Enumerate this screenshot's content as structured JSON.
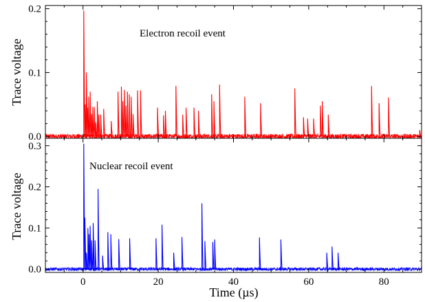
{
  "figure": {
    "xlabel": "Time (µs)",
    "shared_x_ticks": [
      "0",
      "20",
      "40",
      "60",
      "80"
    ]
  },
  "chart_data": [
    {
      "type": "line",
      "title": "",
      "annotation": "Electron recoil event",
      "xlabel": "Time (µs)",
      "ylabel": "Trace voltage",
      "xlim": [
        -10,
        90
      ],
      "ylim": [
        -0.003,
        0.205
      ],
      "x_ticks": [
        0,
        20,
        40,
        60,
        80
      ],
      "y_ticks": [
        0.0,
        0.1,
        0.2
      ],
      "y_tick_labels": [
        "0.0",
        "0.1",
        "0.2"
      ],
      "color": "#ff0000",
      "baseline_noise": 0.004,
      "series": [
        {
          "pulses": [
            [
              0.2,
              0.197
            ],
            [
              0.6,
              0.05
            ],
            [
              0.9,
              0.1
            ],
            [
              1.2,
              0.045
            ],
            [
              1.5,
              0.062
            ],
            [
              1.9,
              0.07
            ],
            [
              2.3,
              0.035
            ],
            [
              2.6,
              0.046
            ],
            [
              3.0,
              0.046
            ],
            [
              3.4,
              0.022
            ],
            [
              3.8,
              0.055
            ],
            [
              4.2,
              0.034
            ],
            [
              4.7,
              0.034
            ],
            [
              5.5,
              0.043
            ],
            [
              7.5,
              0.024
            ],
            [
              9.3,
              0.07
            ],
            [
              10.2,
              0.078
            ],
            [
              10.6,
              0.055
            ],
            [
              11.0,
              0.073
            ],
            [
              11.4,
              0.048
            ],
            [
              11.8,
              0.07
            ],
            [
              12.3,
              0.066
            ],
            [
              12.8,
              0.062
            ],
            [
              13.3,
              0.035
            ],
            [
              14.5,
              0.072
            ],
            [
              15.3,
              0.072
            ],
            [
              19.8,
              0.045
            ],
            [
              21.4,
              0.033
            ],
            [
              21.9,
              0.04
            ],
            [
              24.7,
              0.079
            ],
            [
              26.5,
              0.034
            ],
            [
              27.4,
              0.045
            ],
            [
              29.5,
              0.045
            ],
            [
              30.7,
              0.04
            ],
            [
              34.2,
              0.066
            ],
            [
              34.8,
              0.055
            ],
            [
              36.3,
              0.081
            ],
            [
              43.0,
              0.062
            ],
            [
              47.2,
              0.052
            ],
            [
              56.3,
              0.075
            ],
            [
              58.6,
              0.03
            ],
            [
              59.7,
              0.028
            ],
            [
              61.3,
              0.028
            ],
            [
              63.1,
              0.048
            ],
            [
              63.6,
              0.055
            ],
            [
              65.2,
              0.034
            ],
            [
              76.7,
              0.079
            ],
            [
              78.7,
              0.052
            ],
            [
              81.2,
              0.061
            ],
            [
              89.5,
              0.01
            ]
          ]
        }
      ]
    },
    {
      "type": "line",
      "title": "",
      "annotation": "Nuclear recoil event",
      "xlabel": "Time (µs)",
      "ylabel": "Trace voltage",
      "xlim": [
        -10,
        90
      ],
      "ylim": [
        -0.008,
        0.318
      ],
      "x_ticks": [
        0,
        20,
        40,
        60,
        80
      ],
      "y_ticks": [
        0.0,
        0.1,
        0.2,
        0.3
      ],
      "y_tick_labels": [
        "0.0",
        "0.1",
        "0.2",
        "0.3"
      ],
      "color": "#0000ff",
      "baseline_noise": 0.004,
      "series": [
        {
          "pulses": [
            [
              0.2,
              0.305
            ],
            [
              0.5,
              0.125
            ],
            [
              0.9,
              0.04
            ],
            [
              1.3,
              0.1
            ],
            [
              1.6,
              0.085
            ],
            [
              1.9,
              0.105
            ],
            [
              2.3,
              0.07
            ],
            [
              2.7,
              0.112
            ],
            [
              3.2,
              0.07
            ],
            [
              4.0,
              0.195
            ],
            [
              5.2,
              0.033
            ],
            [
              6.6,
              0.09
            ],
            [
              7.4,
              0.085
            ],
            [
              9.5,
              0.073
            ],
            [
              12.4,
              0.075
            ],
            [
              19.4,
              0.075
            ],
            [
              21.0,
              0.108
            ],
            [
              24.1,
              0.04
            ],
            [
              26.3,
              0.078
            ],
            [
              31.6,
              0.16
            ],
            [
              32.4,
              0.068
            ],
            [
              34.5,
              0.066
            ],
            [
              35.0,
              0.072
            ],
            [
              46.9,
              0.077
            ],
            [
              52.6,
              0.072
            ],
            [
              64.8,
              0.04
            ],
            [
              66.2,
              0.055
            ],
            [
              67.8,
              0.04
            ]
          ]
        }
      ]
    }
  ]
}
